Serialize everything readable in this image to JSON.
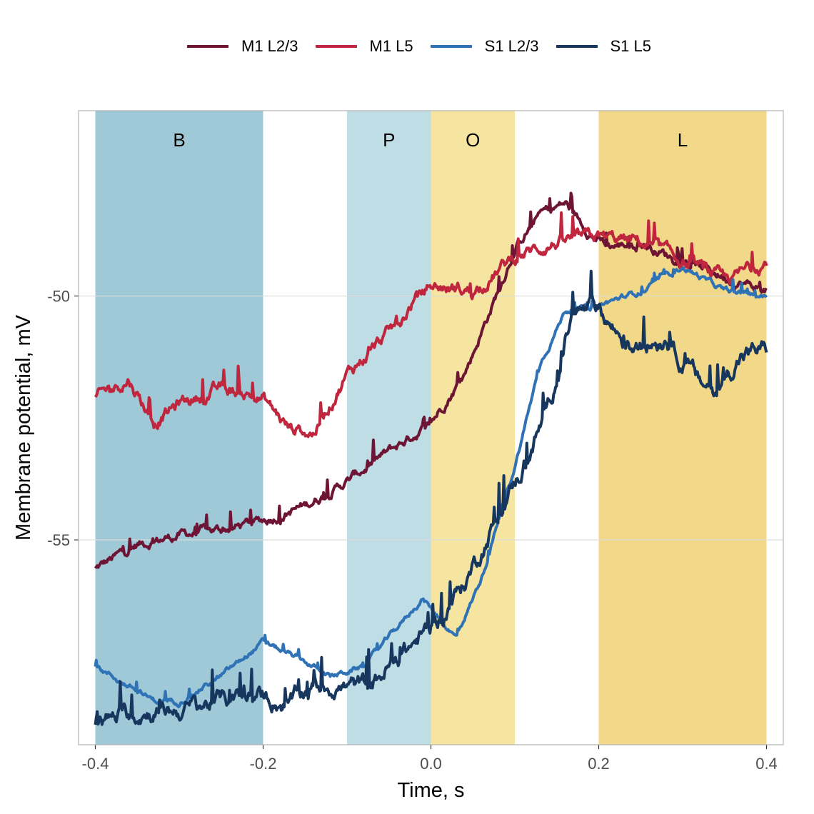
{
  "chart_data": {
    "type": "line",
    "xlabel": "Time, s",
    "ylabel": "Membrane potential, mV",
    "xlim": [
      -0.42,
      0.42
    ],
    "ylim": [
      -59.2,
      -46.2
    ],
    "x_ticks": [
      -0.4,
      -0.2,
      0.0,
      0.2,
      0.4
    ],
    "x_tick_labels": [
      "-0.4",
      "-0.2",
      "0.0",
      "0.2",
      "0.4"
    ],
    "y_ticks": [
      -55,
      -50
    ],
    "y_tick_labels": [
      "-55",
      "-50"
    ],
    "grid": "horizontal",
    "legend_position": "top",
    "bands": [
      {
        "label": "B",
        "from": -0.4,
        "to": -0.2,
        "color": "#8fc0d1"
      },
      {
        "label": "P",
        "from": -0.1,
        "to": 0.0,
        "color": "#b4d7df"
      },
      {
        "label": "O",
        "from": 0.0,
        "to": 0.1,
        "color": "#f3e08f"
      },
      {
        "label": "L",
        "from": 0.2,
        "to": 0.4,
        "color": "#eed274"
      }
    ],
    "series": [
      {
        "name": "M1 L2/3",
        "color": "#6e1535",
        "x": [
          -0.4,
          -0.35,
          -0.3,
          -0.25,
          -0.2,
          -0.15,
          -0.1,
          -0.05,
          0.0,
          0.04,
          0.08,
          0.1,
          0.13,
          0.16,
          0.19,
          0.21,
          0.25,
          0.3,
          0.35,
          0.4
        ],
        "y": [
          -55.6,
          -55.1,
          -54.9,
          -54.8,
          -54.6,
          -54.3,
          -53.8,
          -53.2,
          -52.6,
          -51.6,
          -49.9,
          -49.0,
          -48.3,
          -48.1,
          -48.7,
          -49.0,
          -48.9,
          -49.3,
          -49.6,
          -49.9
        ]
      },
      {
        "name": "M1 L5",
        "color": "#c0273f",
        "x": [
          -0.4,
          -0.36,
          -0.33,
          -0.3,
          -0.25,
          -0.2,
          -0.17,
          -0.14,
          -0.1,
          -0.07,
          -0.04,
          -0.02,
          0.0,
          0.05,
          0.1,
          0.15,
          0.2,
          0.25,
          0.3,
          0.35,
          0.4
        ],
        "y": [
          -52.1,
          -51.7,
          -52.6,
          -52.2,
          -51.9,
          -52.1,
          -52.7,
          -52.8,
          -51.6,
          -51.1,
          -50.6,
          -50.1,
          -49.8,
          -49.9,
          -49.2,
          -48.9,
          -48.8,
          -48.9,
          -49.3,
          -49.7,
          -49.3
        ]
      },
      {
        "name": "S1 L2/3",
        "color": "#2f72b5",
        "x": [
          -0.4,
          -0.37,
          -0.33,
          -0.3,
          -0.25,
          -0.2,
          -0.15,
          -0.12,
          -0.08,
          -0.05,
          -0.01,
          0.0,
          0.03,
          0.06,
          0.1,
          0.13,
          0.16,
          0.2,
          0.25,
          0.3,
          0.35,
          0.4
        ],
        "y": [
          -57.6,
          -57.9,
          -58.3,
          -58.3,
          -57.8,
          -57.1,
          -57.5,
          -57.8,
          -57.6,
          -57.0,
          -56.2,
          -56.4,
          -57.0,
          -55.8,
          -53.5,
          -51.4,
          -50.3,
          -50.2,
          -49.9,
          -49.4,
          -49.9,
          -50.0
        ]
      },
      {
        "name": "S1 L5",
        "color": "#17375f",
        "x": [
          -0.4,
          -0.37,
          -0.33,
          -0.3,
          -0.25,
          -0.2,
          -0.17,
          -0.14,
          -0.1,
          -0.07,
          -0.05,
          0.0,
          0.04,
          0.08,
          0.11,
          0.14,
          0.17,
          0.2,
          0.24,
          0.28,
          0.32,
          0.34,
          0.37,
          0.4
        ],
        "y": [
          -58.8,
          -58.6,
          -58.5,
          -58.5,
          -58.3,
          -58.2,
          -58.4,
          -58.0,
          -58.0,
          -58.0,
          -57.6,
          -56.8,
          -55.9,
          -54.5,
          -53.5,
          -52.3,
          -50.3,
          -50.3,
          -51.1,
          -50.8,
          -51.8,
          -51.9,
          -51.2,
          -51.1
        ]
      }
    ]
  }
}
